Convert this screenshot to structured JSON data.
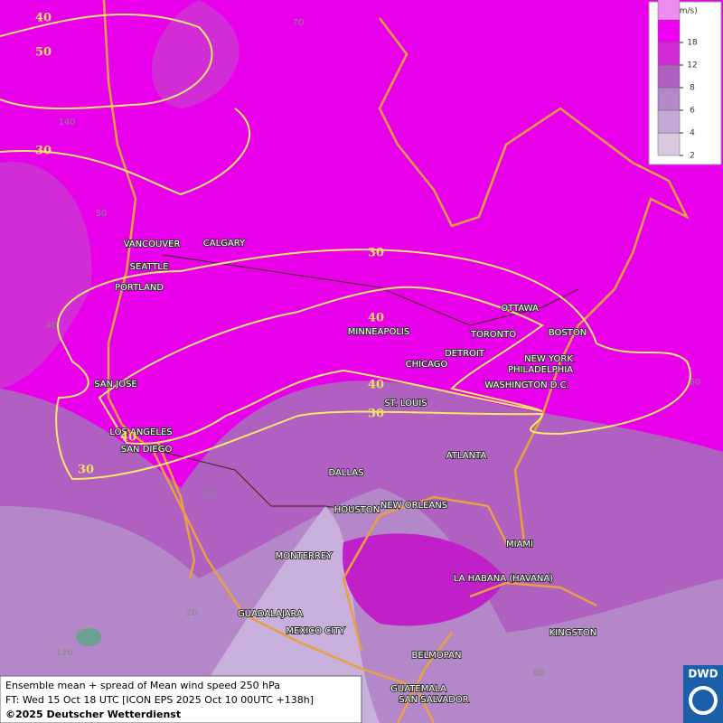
{
  "map": {
    "title_lines": [
      "Ensemble mean + spread of Mean wind speed 250 hPa",
      "FT: Wed 15 Oct 18 UTC [ICON EPS 2025 Oct 10 00UTC +138h]",
      "©2025 Deutscher Wetterdienst"
    ],
    "logo": "DWD",
    "legend": {
      "unit": "(m/s)",
      "ticks": [
        2,
        4,
        6,
        8,
        12,
        18
      ],
      "colors": [
        "#d8c8e0",
        "#c4a8d8",
        "#b488c8",
        "#b060c0",
        "#d22cd6",
        "#ee00f0",
        "#f08cf0"
      ]
    },
    "cities": [
      "VANCOUVER",
      "CALGARY",
      "SEATTLE",
      "PORTLAND",
      "SAN JOSE",
      "LOS ANGELES",
      "SAN DIEGO",
      "DALLAS",
      "HOUSTON",
      "NEW ORLEANS",
      "MONTERREY",
      "GUADALAJARA",
      "MEXICO CITY",
      "MINNEAPOLIS",
      "CHICAGO",
      "DETROIT",
      "TORONTO",
      "OTTAWA",
      "BOSTON",
      "NEW YORK",
      "PHILADELPHIA",
      "WASHINGTON D.C.",
      "ST. LOUIS",
      "ATLANTA",
      "MIAMI",
      "LA HABANA (HAVANA)",
      "BELMOPAN",
      "KINGSTON",
      "GUATEMALA",
      "SAN SALVADOR"
    ],
    "contour_labels": [
      40,
      50,
      30,
      30,
      40,
      40,
      30,
      40,
      30
    ],
    "grid_labels": [
      70,
      140,
      50,
      40,
      30,
      20,
      120,
      80,
      60
    ]
  }
}
